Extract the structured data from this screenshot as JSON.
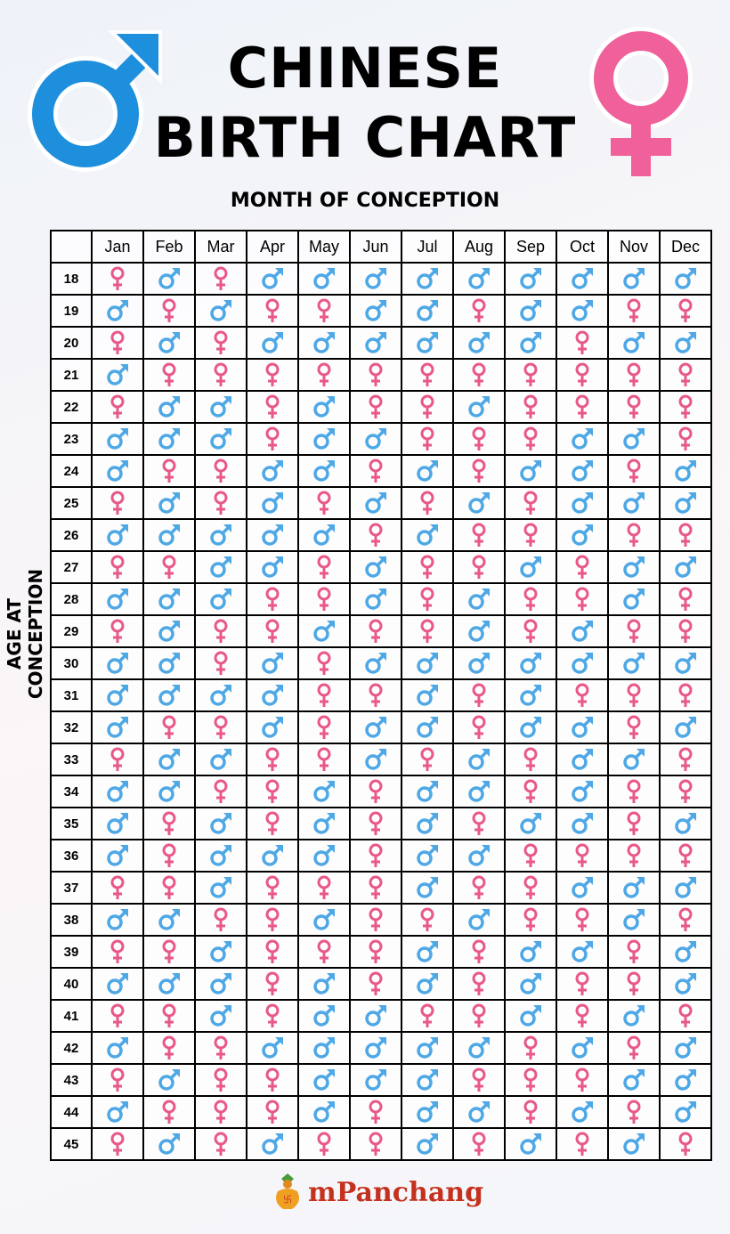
{
  "title_line1": "CHINESE",
  "title_line2": "BIRTH CHART",
  "x_axis_label": "MONTH OF CONCEPTION",
  "y_axis_label": "AGE AT CONCEPTION",
  "brand": "mPanchang",
  "colors": {
    "male": "#4ea8e6",
    "female": "#e8588a",
    "male_big": "#1e8fdc",
    "female_big": "#f0609a"
  },
  "chart_data": {
    "type": "table",
    "legend": {
      "M": "male-symbol",
      "F": "female-symbol"
    },
    "months": [
      "Jan",
      "Feb",
      "Mar",
      "Apr",
      "May",
      "Jun",
      "Jul",
      "Aug",
      "Sep",
      "Oct",
      "Nov",
      "Dec"
    ],
    "rows": [
      {
        "age": "18",
        "cells": "FMFMMMMMMMMM"
      },
      {
        "age": "19",
        "cells": "MFMFFMMFMMFF"
      },
      {
        "age": "20",
        "cells": "FMFMMMMMMFMM"
      },
      {
        "age": "21",
        "cells": "MFFFFFFFFFFF"
      },
      {
        "age": "22",
        "cells": "FMMFMFFMFFFF"
      },
      {
        "age": "23",
        "cells": "MMMFMMFFFMMF"
      },
      {
        "age": "24",
        "cells": "MFFMMFMFMMFM"
      },
      {
        "age": "25",
        "cells": "FMFMFMFMFMMM"
      },
      {
        "age": "26",
        "cells": "MMMMMFMFFMFF"
      },
      {
        "age": "27",
        "cells": "FFMMFMFFMFMM"
      },
      {
        "age": "28",
        "cells": "MMMFFMFMFFMF"
      },
      {
        "age": "29",
        "cells": "FMFFMFFMFMFF"
      },
      {
        "age": "30",
        "cells": "MMFMFMMMMMMM"
      },
      {
        "age": "31",
        "cells": "MMMMFFMFMFFF"
      },
      {
        "age": "32",
        "cells": "MFFMFMMFMMFM"
      },
      {
        "age": "33",
        "cells": "FMMFFMFMFMMF"
      },
      {
        "age": "34",
        "cells": "MMFFMFMMFMFF"
      },
      {
        "age": "35",
        "cells": "MFMFMFMFMMFM"
      },
      {
        "age": "36",
        "cells": "MFMMMFMMFFFF"
      },
      {
        "age": "37",
        "cells": "FFMFFFMFFMMM"
      },
      {
        "age": "38",
        "cells": "MMFFMFFMFFMF"
      },
      {
        "age": "39",
        "cells": "FFMFFFMFMMFM"
      },
      {
        "age": "40",
        "cells": "MMMFMFMFMFFM"
      },
      {
        "age": "41",
        "cells": "FFMFMMFFMFMF"
      },
      {
        "age": "42",
        "cells": "MFFMMMMMFMFM"
      },
      {
        "age": "43",
        "cells": "FMFFMMMFFFMM"
      },
      {
        "age": "44",
        "cells": "MFFFMFMMFMFM"
      },
      {
        "age": "45",
        "cells": "FMFMFFMFMFMF"
      }
    ]
  }
}
